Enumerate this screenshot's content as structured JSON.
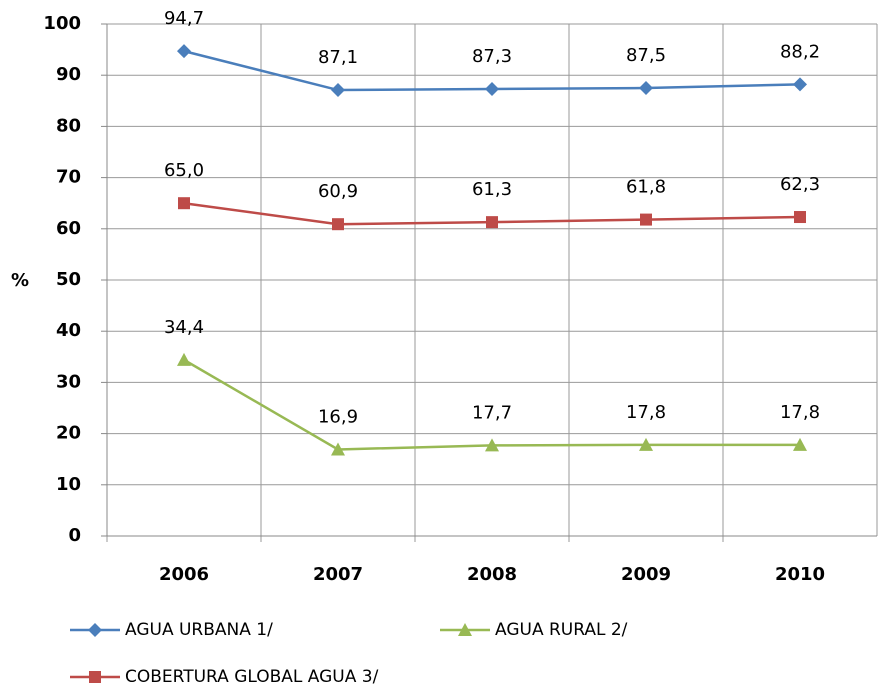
{
  "chart_data": {
    "type": "line",
    "y_label": "%",
    "categories": [
      "2006",
      "2007",
      "2008",
      "2009",
      "2010"
    ],
    "series": [
      {
        "name": "AGUA URBANA 1/",
        "color": "#4a7ebb",
        "marker": "diamond",
        "values": [
          94.7,
          87.1,
          87.3,
          87.5,
          88.2
        ],
        "value_labels": [
          "94,7",
          "87,1",
          "87,3",
          "87,5",
          "88,2"
        ]
      },
      {
        "name": "AGUA RURAL 2/",
        "color": "#98b954",
        "marker": "triangle",
        "values": [
          34.4,
          16.9,
          17.7,
          17.8,
          17.8
        ],
        "value_labels": [
          "34,4",
          "16,9",
          "17,7",
          "17,8",
          "17,8"
        ]
      },
      {
        "name": "COBERTURA GLOBAL AGUA 3/",
        "color": "#be4b48",
        "marker": "square",
        "values": [
          65.0,
          60.9,
          61.3,
          61.8,
          62.3
        ],
        "value_labels": [
          "65,0",
          "60,9",
          "61,3",
          "61,8",
          "62,3"
        ]
      }
    ],
    "ylim": [
      0,
      100
    ],
    "yticks": [
      0,
      10,
      20,
      30,
      40,
      50,
      60,
      70,
      80,
      90,
      100
    ],
    "grid": true
  }
}
